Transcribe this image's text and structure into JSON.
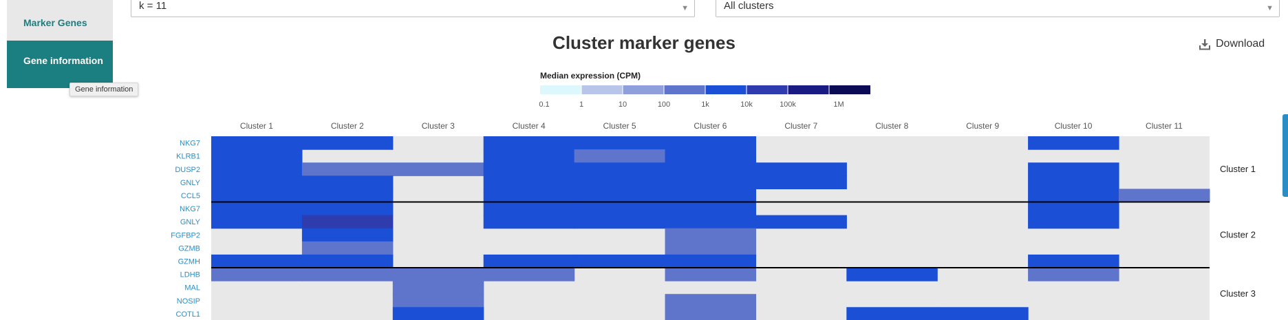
{
  "sidebar": {
    "items": [
      {
        "label": "Marker Genes",
        "active": false
      },
      {
        "label": "Gene information",
        "active": true
      }
    ],
    "tooltip": "Gene information"
  },
  "controls": {
    "k_select": {
      "value": "k = 11"
    },
    "cluster_select": {
      "value": "All clusters"
    }
  },
  "download_label": "Download",
  "colors": {
    "accent": "#1b7e80",
    "link": "#2a8ec4",
    "cell_bg": "#e8e8e8",
    "scale": [
      "#dcf8fd",
      "#b8c4ea",
      "#8e9fdc",
      "#5e75cb",
      "#1b4fd6",
      "#2f3cad",
      "#1a1a83",
      "#0a0a55"
    ]
  },
  "chart_data": {
    "type": "heatmap",
    "title": "Cluster marker genes",
    "legend": {
      "title": "Median expression (CPM)",
      "ticks": [
        "0.1",
        "1",
        "10",
        "100",
        "1k",
        "10k",
        "100k",
        "1M"
      ],
      "tick_values": [
        0.1,
        1,
        10,
        100,
        1000,
        10000,
        100000,
        1000000
      ]
    },
    "columns": [
      "Cluster 1",
      "Cluster 2",
      "Cluster 3",
      "Cluster 4",
      "Cluster 5",
      "Cluster 6",
      "Cluster 7",
      "Cluster 8",
      "Cluster 9",
      "Cluster 10",
      "Cluster 11"
    ],
    "groups": [
      {
        "label": "Cluster 1",
        "genes": [
          "NKG7",
          "KLRB1",
          "DUSP2",
          "GNLY",
          "CCL5"
        ]
      },
      {
        "label": "Cluster 2",
        "genes": [
          "NKG7",
          "GNLY",
          "FGFBP2",
          "GZMB",
          "GZMH"
        ]
      },
      {
        "label": "Cluster 3",
        "genes": [
          "LDHB",
          "MAL",
          "NOSIP",
          "COTL1"
        ]
      }
    ],
    "rows": [
      "NKG7",
      "KLRB1",
      "DUSP2",
      "GNLY",
      "CCL5",
      "NKG7",
      "GNLY",
      "FGFBP2",
      "GZMB",
      "GZMH",
      "LDHB",
      "MAL",
      "NOSIP",
      "COTL1"
    ],
    "values": [
      [
        3000,
        3000,
        null,
        3000,
        3000,
        3000,
        null,
        null,
        null,
        3000,
        null
      ],
      [
        1500,
        null,
        null,
        1500,
        600,
        1000,
        null,
        null,
        null,
        null,
        null
      ],
      [
        2000,
        500,
        150,
        2000,
        1500,
        2000,
        1500,
        null,
        null,
        1500,
        null
      ],
      [
        6000,
        9000,
        null,
        6000,
        4000,
        6000,
        1500,
        null,
        null,
        4000,
        null
      ],
      [
        3000,
        5000,
        null,
        4000,
        3000,
        3000,
        null,
        null,
        null,
        5000,
        200
      ],
      [
        5000,
        5000,
        null,
        5000,
        4000,
        4000,
        null,
        null,
        null,
        4000,
        null
      ],
      [
        6000,
        10000,
        null,
        6000,
        4000,
        6000,
        1500,
        null,
        null,
        5000,
        null
      ],
      [
        null,
        1500,
        null,
        null,
        null,
        150,
        null,
        null,
        null,
        null,
        null
      ],
      [
        null,
        700,
        null,
        null,
        null,
        150,
        null,
        null,
        null,
        null,
        null
      ],
      [
        1500,
        1500,
        null,
        1500,
        1500,
        1500,
        null,
        null,
        null,
        1500,
        null
      ],
      [
        200,
        200,
        500,
        200,
        null,
        200,
        null,
        1500,
        null,
        200,
        null
      ],
      [
        null,
        null,
        300,
        null,
        null,
        null,
        null,
        null,
        null,
        null,
        null
      ],
      [
        null,
        null,
        700,
        null,
        null,
        150,
        null,
        null,
        null,
        null,
        null
      ],
      [
        null,
        null,
        1000,
        null,
        null,
        150,
        null,
        1200,
        1500,
        null,
        null
      ]
    ]
  }
}
